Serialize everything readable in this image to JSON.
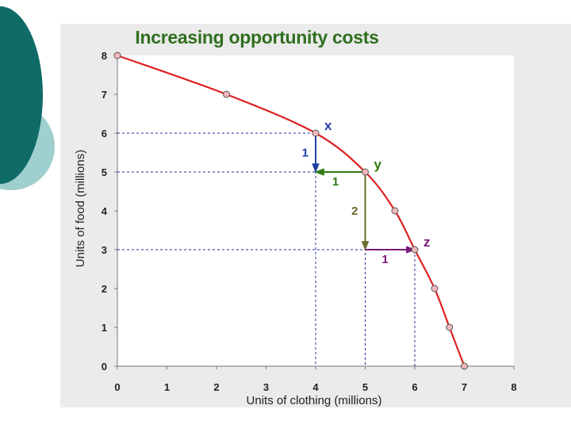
{
  "colors": {
    "curve": "#dd2222",
    "point_fill": "#f2b8bc",
    "guide": "#1f2d9a",
    "arrow_food_x_to_y": "#1f3fa0",
    "arrow_cloth_x_to_y": "#2d7a12",
    "arrow_food_y_to_z": "#6b6b2a",
    "arrow_cloth_y_to_z": "#7a1a7a",
    "title": "#2f6f1f",
    "deco_dark": "#0e6b66",
    "deco_light": "#9fcfcf"
  },
  "chart_data": {
    "type": "line",
    "title": "Increasing opportunity costs",
    "xlabel": "Units of clothing (millions)",
    "ylabel": "Units of food  (millions)",
    "xlim": [
      0,
      8
    ],
    "ylim": [
      0,
      8
    ],
    "x_ticks": [
      0,
      1,
      2,
      3,
      4,
      5,
      6,
      7,
      8
    ],
    "y_ticks": [
      0,
      1,
      2,
      3,
      4,
      5,
      6,
      7,
      8
    ],
    "grid": false,
    "series": [
      {
        "points": [
          {
            "x": 0,
            "y": 8
          },
          {
            "x": 2.2,
            "y": 7
          },
          {
            "x": 4,
            "y": 6
          },
          {
            "x": 5,
            "y": 5
          },
          {
            "x": 5.6,
            "y": 4
          },
          {
            "x": 6,
            "y": 3
          },
          {
            "x": 6.4,
            "y": 2
          },
          {
            "x": 6.7,
            "y": 1
          },
          {
            "x": 7,
            "y": 0
          }
        ]
      }
    ],
    "labeled_points": [
      {
        "label": "x",
        "x": 4,
        "y": 6,
        "color": "#2a3fb0"
      },
      {
        "label": "y",
        "x": 5,
        "y": 5,
        "color": "#2d7a12"
      },
      {
        "label": "z",
        "x": 6,
        "y": 3,
        "color": "#7a1a7a"
      }
    ],
    "annotations": [
      {
        "label": "1",
        "from": {
          "x": 4,
          "y": 6
        },
        "to": {
          "x": 4,
          "y": 5
        },
        "color": "#1f3fa0"
      },
      {
        "label": "1",
        "from": {
          "x": 5,
          "y": 5
        },
        "to": {
          "x": 4,
          "y": 5
        },
        "color": "#2d7a12"
      },
      {
        "label": "2",
        "from": {
          "x": 5,
          "y": 5
        },
        "to": {
          "x": 5,
          "y": 3
        },
        "color": "#6b6b2a"
      },
      {
        "label": "1",
        "from": {
          "x": 5,
          "y": 3
        },
        "to": {
          "x": 6,
          "y": 3
        },
        "color": "#7a1a7a"
      }
    ]
  }
}
